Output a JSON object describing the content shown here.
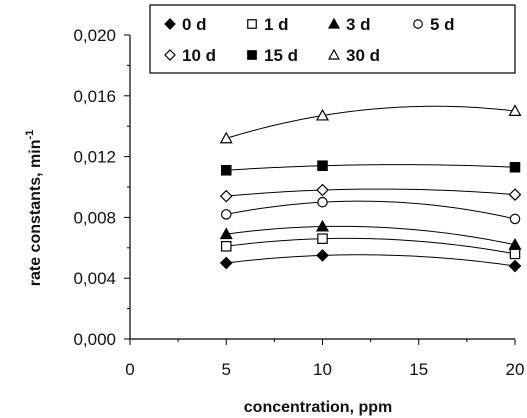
{
  "chart_data": {
    "type": "scatter",
    "title": "",
    "xlabel": "concentration, ppm",
    "ylabel": "rate constants, min",
    "ylabel_superscript": "-1",
    "xlim": [
      0,
      20
    ],
    "ylim": [
      0,
      0.02
    ],
    "xticks": [
      0,
      5,
      10,
      15,
      20
    ],
    "xtick_labels": [
      "0",
      "5",
      "10",
      "15",
      "20"
    ],
    "yticks": [
      0,
      0.004,
      0.008,
      0.012,
      0.016,
      0.02
    ],
    "ytick_labels": [
      "0,000",
      "0,004",
      "0,008",
      "0,012",
      "0,016",
      "0,020"
    ],
    "grid": false,
    "legend_position": "top",
    "trendlines": "smooth quadratic fit per series",
    "x": [
      5,
      10,
      20
    ],
    "series": [
      {
        "name": "0 d",
        "marker": "filled-diamond",
        "values": [
          0.005,
          0.0055,
          0.0048
        ]
      },
      {
        "name": "1 d",
        "marker": "open-square",
        "values": [
          0.0061,
          0.0066,
          0.0056
        ]
      },
      {
        "name": "3 d",
        "marker": "filled-triangle",
        "values": [
          0.0069,
          0.0074,
          0.0062
        ]
      },
      {
        "name": "5 d",
        "marker": "open-circle",
        "values": [
          0.0082,
          0.009,
          0.0079
        ]
      },
      {
        "name": "10 d",
        "marker": "open-diamond",
        "values": [
          0.0094,
          0.0098,
          0.0095
        ]
      },
      {
        "name": "15 d",
        "marker": "filled-square",
        "values": [
          0.0111,
          0.0114,
          0.0113
        ]
      },
      {
        "name": "30 d",
        "marker": "open-triangle",
        "values": [
          0.0132,
          0.0147,
          0.015
        ]
      }
    ]
  }
}
